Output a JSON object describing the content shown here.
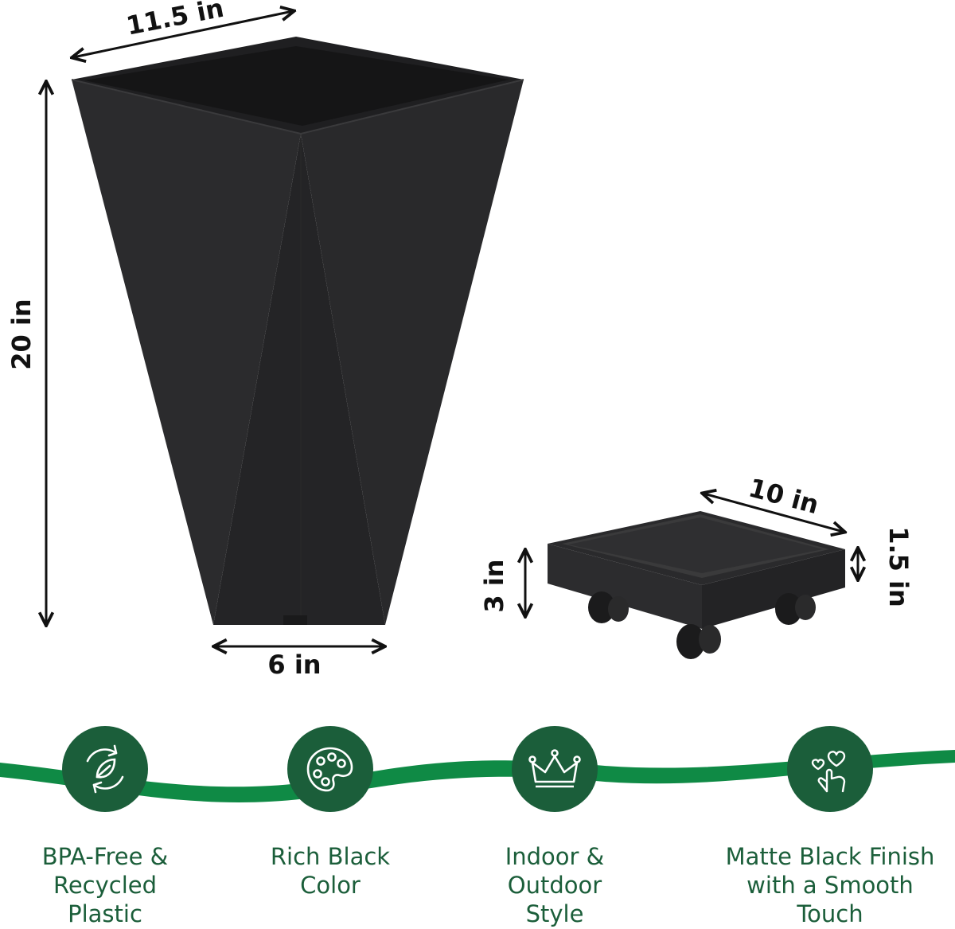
{
  "colors": {
    "brand_green": "#1b5e3a",
    "wave_green": "#0f8a45",
    "planter_black": "#2a2a2c",
    "background": "#ffffff"
  },
  "dimensions": {
    "planter_top_width": "11.5 in",
    "planter_height": "20 in",
    "planter_bottom_width": "6 in",
    "caddy_width": "10 in",
    "caddy_rim_height": "1.5 in",
    "caddy_total_height": "3 in"
  },
  "features": [
    {
      "icon": "recycle-leaf-icon",
      "label": "BPA-Free &\nRecycled\nPlastic"
    },
    {
      "icon": "palette-icon",
      "label": "Rich Black\nColor"
    },
    {
      "icon": "crown-icon",
      "label": "Indoor &\nOutdoor\nStyle"
    },
    {
      "icon": "touch-hearts-icon",
      "label": "Matte Black Finish\nwith a Smooth\nTouch"
    }
  ]
}
